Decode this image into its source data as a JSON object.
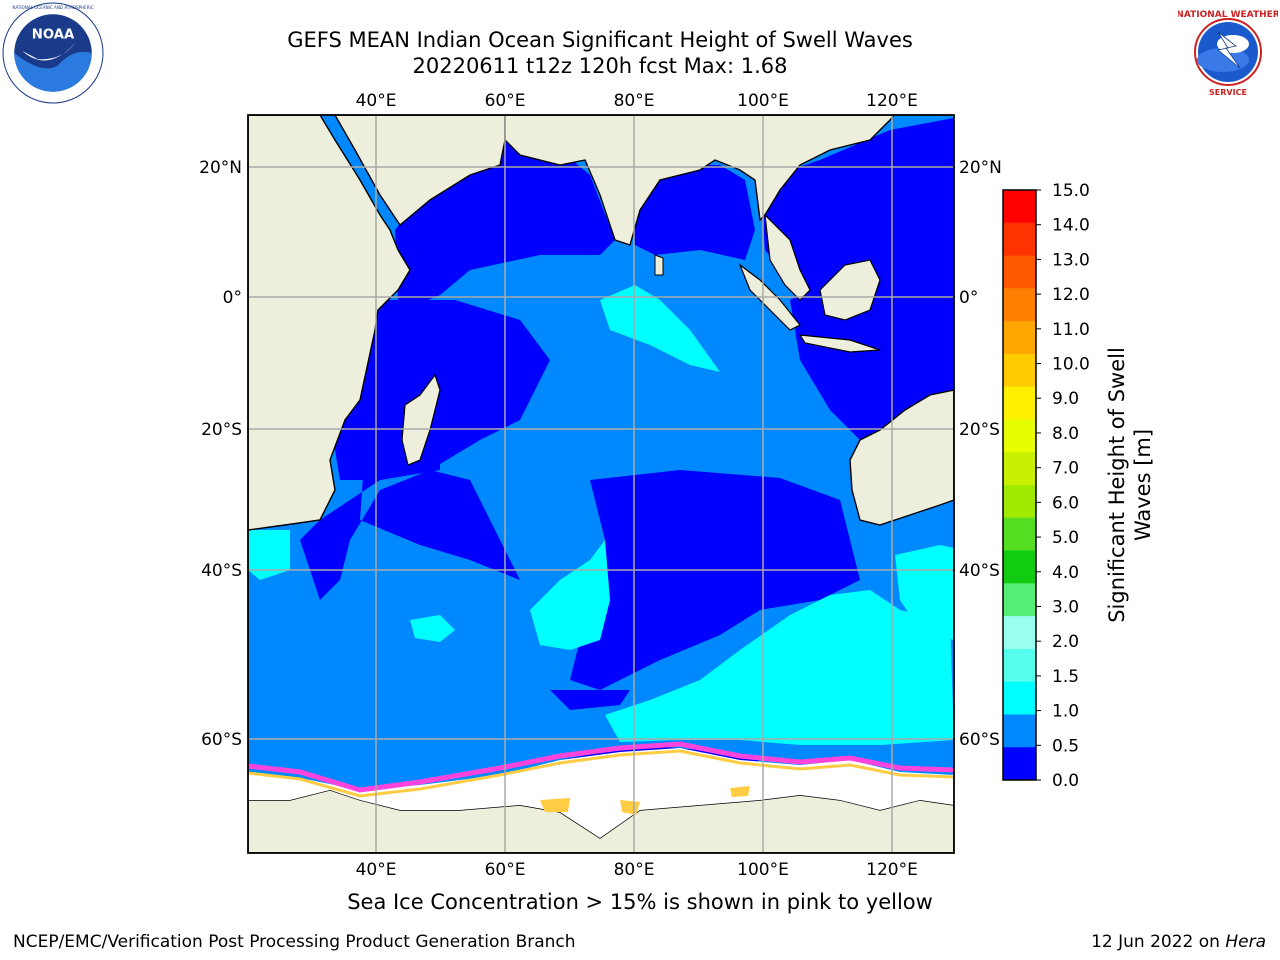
{
  "title_line1": "GEFS MEAN Indian Ocean Significant Height of Swell Waves",
  "title_line2": "20220611 t12z 120h fcst   Max: 1.68",
  "logos": {
    "left": "NOAA",
    "right": "NATIONAL WEATHER SERVICE"
  },
  "map": {
    "lon_ticks_top": [
      "40°E",
      "60°E",
      "80°E",
      "100°E",
      "120°E"
    ],
    "lon_ticks_bottom": [
      "40°E",
      "60°E",
      "80°E",
      "100°E",
      "120°E"
    ],
    "lat_ticks_left": [
      "20°N",
      "0°",
      "20°S",
      "40°S",
      "60°S"
    ],
    "lat_ticks_right": [
      "20°N",
      "0°",
      "20°S",
      "40°S",
      "60°S"
    ]
  },
  "colorbar": {
    "title_line1": "Significant Height of Swell",
    "title_line2": "Waves [m]",
    "ticks": [
      "15.0",
      "14.0",
      "13.0",
      "12.0",
      "11.0",
      "10.0",
      "9.0",
      "8.0",
      "7.0",
      "6.0",
      "5.0",
      "4.0",
      "3.0",
      "2.0",
      "1.5",
      "1.0",
      "0.5",
      "0.0"
    ],
    "colors": [
      "#ff0000",
      "#ff3300",
      "#ff5a00",
      "#ff8000",
      "#ffa600",
      "#ffcc00",
      "#fff000",
      "#e6ff00",
      "#c8f000",
      "#a0ea00",
      "#55dd22",
      "#11cc11",
      "#55ee77",
      "#99ffee",
      "#55ffee",
      "#00ffff",
      "#0088ff",
      "#0000ff"
    ]
  },
  "colors": {
    "land": "#eeeedd",
    "swell_0_05": "#0000ff",
    "swell_05_10": "#0088ff",
    "swell_10_15": "#00ffff",
    "ice": "#ffffff",
    "ice_edge_pink": "#ff44dd",
    "ice_edge_yellow": "#ffcc44"
  },
  "caption": "Sea Ice Concentration > 15% is shown in pink to yellow",
  "footer_left": "NCEP/EMC/Verification Post Processing Product Generation Branch",
  "footer_right_prefix": "12 Jun 2022 on ",
  "footer_right_host": "Hera"
}
